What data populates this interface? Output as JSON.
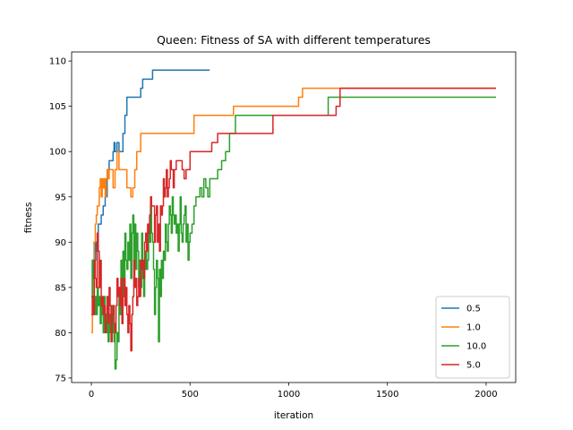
{
  "chart_data": {
    "type": "line",
    "title": "Queen: Fitness of SA with different temperatures",
    "xlabel": "iteration",
    "ylabel": "fitness",
    "xlim": [
      -100,
      2150
    ],
    "ylim": [
      74.5,
      111
    ],
    "xticks": [
      0,
      500,
      1000,
      1500,
      2000
    ],
    "yticks": [
      75,
      80,
      85,
      90,
      95,
      100,
      105,
      110
    ],
    "grid": false,
    "legend_position": "lower-right",
    "series": [
      {
        "name": "0.5",
        "color": "#1f77b4",
        "points": [
          [
            0,
            84
          ],
          [
            5,
            88
          ],
          [
            10,
            86
          ],
          [
            14,
            90
          ],
          [
            18,
            88
          ],
          [
            22,
            90
          ],
          [
            26,
            89
          ],
          [
            30,
            91
          ],
          [
            35,
            92
          ],
          [
            40,
            92
          ],
          [
            50,
            93
          ],
          [
            60,
            94
          ],
          [
            70,
            95
          ],
          [
            80,
            98
          ],
          [
            90,
            99
          ],
          [
            100,
            99
          ],
          [
            110,
            100
          ],
          [
            115,
            101
          ],
          [
            120,
            100
          ],
          [
            130,
            101
          ],
          [
            140,
            100
          ],
          [
            150,
            100
          ],
          [
            160,
            102
          ],
          [
            170,
            104
          ],
          [
            180,
            106
          ],
          [
            200,
            106
          ],
          [
            220,
            106
          ],
          [
            240,
            106
          ],
          [
            250,
            107
          ],
          [
            260,
            108
          ],
          [
            280,
            108
          ],
          [
            300,
            108
          ],
          [
            310,
            109
          ],
          [
            400,
            109
          ],
          [
            500,
            109
          ],
          [
            600,
            109
          ]
        ]
      },
      {
        "name": "1.0",
        "color": "#ff7f0e",
        "points": [
          [
            0,
            80
          ],
          [
            5,
            84
          ],
          [
            10,
            86
          ],
          [
            15,
            90
          ],
          [
            20,
            92
          ],
          [
            25,
            93
          ],
          [
            30,
            94
          ],
          [
            35,
            94
          ],
          [
            40,
            96
          ],
          [
            45,
            97
          ],
          [
            50,
            95
          ],
          [
            55,
            97
          ],
          [
            60,
            96
          ],
          [
            65,
            97
          ],
          [
            70,
            95
          ],
          [
            75,
            97
          ],
          [
            80,
            98
          ],
          [
            85,
            97
          ],
          [
            90,
            98
          ],
          [
            100,
            98
          ],
          [
            110,
            96
          ],
          [
            120,
            98
          ],
          [
            130,
            100
          ],
          [
            140,
            98
          ],
          [
            150,
            98
          ],
          [
            160,
            98
          ],
          [
            170,
            98
          ],
          [
            180,
            96
          ],
          [
            190,
            96
          ],
          [
            200,
            95
          ],
          [
            210,
            96
          ],
          [
            220,
            98
          ],
          [
            230,
            100
          ],
          [
            240,
            100
          ],
          [
            250,
            102
          ],
          [
            300,
            102
          ],
          [
            400,
            102
          ],
          [
            500,
            102
          ],
          [
            520,
            104
          ],
          [
            600,
            104
          ],
          [
            700,
            104
          ],
          [
            720,
            105
          ],
          [
            800,
            105
          ],
          [
            900,
            105
          ],
          [
            1000,
            105
          ],
          [
            1050,
            106
          ],
          [
            1070,
            107
          ],
          [
            1200,
            107
          ],
          [
            1240,
            107
          ],
          [
            1500,
            107
          ],
          [
            2050,
            107
          ]
        ]
      },
      {
        "name": "10.0",
        "color": "#2ca02c",
        "points": [
          [
            0,
            84
          ],
          [
            5,
            88
          ],
          [
            10,
            86
          ],
          [
            15,
            82
          ],
          [
            20,
            84
          ],
          [
            25,
            82
          ],
          [
            30,
            85
          ],
          [
            35,
            83
          ],
          [
            40,
            84
          ],
          [
            45,
            81
          ],
          [
            50,
            83
          ],
          [
            55,
            82
          ],
          [
            60,
            80
          ],
          [
            65,
            84
          ],
          [
            70,
            82
          ],
          [
            75,
            80
          ],
          [
            80,
            83
          ],
          [
            85,
            79
          ],
          [
            90,
            82
          ],
          [
            95,
            80
          ],
          [
            100,
            83
          ],
          [
            105,
            80
          ],
          [
            110,
            83
          ],
          [
            115,
            79
          ],
          [
            118,
            80
          ],
          [
            120,
            76
          ],
          [
            125,
            77
          ],
          [
            130,
            80
          ],
          [
            135,
            79
          ],
          [
            140,
            84
          ],
          [
            145,
            82
          ],
          [
            150,
            88
          ],
          [
            155,
            83
          ],
          [
            160,
            89
          ],
          [
            165,
            85
          ],
          [
            170,
            91
          ],
          [
            175,
            88
          ],
          [
            180,
            87
          ],
          [
            185,
            90
          ],
          [
            190,
            88
          ],
          [
            195,
            92
          ],
          [
            200,
            86
          ],
          [
            205,
            91
          ],
          [
            210,
            93
          ],
          [
            215,
            88
          ],
          [
            220,
            92
          ],
          [
            225,
            87
          ],
          [
            230,
            91
          ],
          [
            235,
            89
          ],
          [
            240,
            85
          ],
          [
            245,
            88
          ],
          [
            250,
            85
          ],
          [
            255,
            91
          ],
          [
            260,
            86
          ],
          [
            265,
            84
          ],
          [
            270,
            87
          ],
          [
            275,
            89
          ],
          [
            280,
            87
          ],
          [
            285,
            88
          ],
          [
            290,
            92
          ],
          [
            295,
            90
          ],
          [
            300,
            94
          ],
          [
            305,
            91
          ],
          [
            310,
            90
          ],
          [
            315,
            87
          ],
          [
            320,
            82
          ],
          [
            325,
            85
          ],
          [
            330,
            88
          ],
          [
            335,
            86
          ],
          [
            340,
            79
          ],
          [
            345,
            87
          ],
          [
            350,
            84
          ],
          [
            355,
            88
          ],
          [
            360,
            86
          ],
          [
            365,
            89
          ],
          [
            370,
            88
          ],
          [
            375,
            92
          ],
          [
            380,
            90
          ],
          [
            385,
            89
          ],
          [
            390,
            92
          ],
          [
            395,
            94
          ],
          [
            400,
            93
          ],
          [
            405,
            91
          ],
          [
            410,
            95
          ],
          [
            415,
            93
          ],
          [
            420,
            92
          ],
          [
            425,
            93
          ],
          [
            430,
            91
          ],
          [
            435,
            92
          ],
          [
            440,
            89
          ],
          [
            445,
            92
          ],
          [
            450,
            95
          ],
          [
            455,
            91
          ],
          [
            460,
            90
          ],
          [
            465,
            92
          ],
          [
            470,
            93
          ],
          [
            475,
            94
          ],
          [
            480,
            90
          ],
          [
            485,
            92
          ],
          [
            490,
            88
          ],
          [
            495,
            90
          ],
          [
            500,
            91
          ],
          [
            510,
            92
          ],
          [
            520,
            94
          ],
          [
            530,
            95
          ],
          [
            540,
            95
          ],
          [
            550,
            96
          ],
          [
            560,
            95
          ],
          [
            570,
            97
          ],
          [
            580,
            96
          ],
          [
            590,
            95
          ],
          [
            600,
            97
          ],
          [
            610,
            97
          ],
          [
            620,
            97
          ],
          [
            630,
            97
          ],
          [
            640,
            98
          ],
          [
            650,
            98
          ],
          [
            660,
            99
          ],
          [
            670,
            99
          ],
          [
            680,
            100
          ],
          [
            700,
            102
          ],
          [
            720,
            102
          ],
          [
            730,
            104
          ],
          [
            800,
            104
          ],
          [
            900,
            104
          ],
          [
            1000,
            104
          ],
          [
            1100,
            104
          ],
          [
            1190,
            104
          ],
          [
            1200,
            106
          ],
          [
            1300,
            106
          ],
          [
            1500,
            106
          ],
          [
            2050,
            106
          ]
        ]
      },
      {
        "name": "5.0",
        "color": "#d62728",
        "points": [
          [
            0,
            82
          ],
          [
            5,
            84
          ],
          [
            10,
            82
          ],
          [
            15,
            88
          ],
          [
            20,
            86
          ],
          [
            25,
            85
          ],
          [
            30,
            91
          ],
          [
            35,
            89
          ],
          [
            40,
            85
          ],
          [
            45,
            88
          ],
          [
            50,
            83
          ],
          [
            55,
            84
          ],
          [
            60,
            82
          ],
          [
            65,
            83
          ],
          [
            70,
            80
          ],
          [
            75,
            82
          ],
          [
            80,
            84
          ],
          [
            85,
            81
          ],
          [
            90,
            85
          ],
          [
            95,
            83
          ],
          [
            100,
            79
          ],
          [
            105,
            82
          ],
          [
            110,
            83
          ],
          [
            115,
            81
          ],
          [
            120,
            80
          ],
          [
            125,
            83
          ],
          [
            130,
            86
          ],
          [
            135,
            84
          ],
          [
            140,
            85
          ],
          [
            145,
            83
          ],
          [
            150,
            86
          ],
          [
            155,
            81
          ],
          [
            160,
            84
          ],
          [
            165,
            86
          ],
          [
            170,
            83
          ],
          [
            175,
            85
          ],
          [
            180,
            82
          ],
          [
            185,
            80
          ],
          [
            190,
            83
          ],
          [
            195,
            81
          ],
          [
            200,
            78
          ],
          [
            205,
            82
          ],
          [
            210,
            84
          ],
          [
            215,
            88
          ],
          [
            220,
            85
          ],
          [
            225,
            86
          ],
          [
            230,
            83
          ],
          [
            235,
            84
          ],
          [
            240,
            86
          ],
          [
            245,
            84
          ],
          [
            250,
            88
          ],
          [
            255,
            87
          ],
          [
            260,
            88
          ],
          [
            265,
            86
          ],
          [
            270,
            90
          ],
          [
            275,
            91
          ],
          [
            280,
            89
          ],
          [
            285,
            92
          ],
          [
            290,
            91
          ],
          [
            295,
            93
          ],
          [
            300,
            95
          ],
          [
            305,
            94
          ],
          [
            310,
            94
          ],
          [
            315,
            94
          ],
          [
            320,
            90
          ],
          [
            325,
            93
          ],
          [
            330,
            94
          ],
          [
            335,
            90
          ],
          [
            340,
            92
          ],
          [
            345,
            89
          ],
          [
            350,
            94
          ],
          [
            355,
            93
          ],
          [
            360,
            94
          ],
          [
            365,
            97
          ],
          [
            370,
            95
          ],
          [
            375,
            96
          ],
          [
            380,
            98
          ],
          [
            385,
            95
          ],
          [
            390,
            96
          ],
          [
            395,
            97
          ],
          [
            400,
            99
          ],
          [
            405,
            98
          ],
          [
            410,
            98
          ],
          [
            415,
            96
          ],
          [
            420,
            98
          ],
          [
            430,
            99
          ],
          [
            440,
            99
          ],
          [
            450,
            99
          ],
          [
            460,
            98
          ],
          [
            470,
            97
          ],
          [
            480,
            98
          ],
          [
            490,
            98
          ],
          [
            500,
            100
          ],
          [
            560,
            100
          ],
          [
            600,
            100
          ],
          [
            610,
            101
          ],
          [
            620,
            101
          ],
          [
            640,
            102
          ],
          [
            700,
            102
          ],
          [
            720,
            102
          ],
          [
            800,
            102
          ],
          [
            900,
            102
          ],
          [
            920,
            104
          ],
          [
            1000,
            104
          ],
          [
            1100,
            104
          ],
          [
            1200,
            104
          ],
          [
            1240,
            105
          ],
          [
            1260,
            107
          ],
          [
            1500,
            107
          ],
          [
            2050,
            107
          ]
        ]
      }
    ],
    "legend_order": [
      "0.5",
      "1.0",
      "10.0",
      "5.0"
    ]
  }
}
